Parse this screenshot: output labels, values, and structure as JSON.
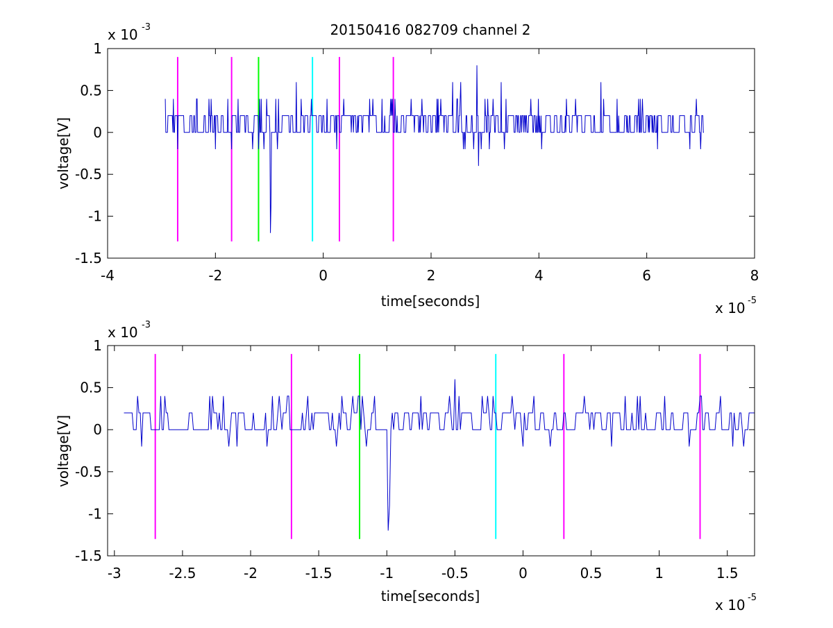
{
  "figure_title": "20150416 082709 channel 2",
  "chart_data": [
    {
      "type": "line",
      "title": "20150416 082709 channel 2",
      "xlabel": "time[seconds]",
      "ylabel": "voltage[V]",
      "x_multiplier": "x 10",
      "x_exponent": "-5",
      "y_multiplier": "x 10",
      "y_exponent": "-3",
      "xlim": [
        -4,
        8
      ],
      "ylim": [
        -1.5,
        1
      ],
      "x_ticks": [
        -4,
        -2,
        0,
        2,
        4,
        6,
        8
      ],
      "x_tick_labels": [
        "-4",
        "-2",
        "0",
        "2",
        "4",
        "6",
        "8"
      ],
      "y_ticks": [
        -1.5,
        -1,
        -0.5,
        0,
        0.5,
        1
      ],
      "y_tick_labels": [
        "-1.5",
        "-1",
        "-0.5",
        "0",
        "0.5",
        "1"
      ],
      "grid": false,
      "series": [
        {
          "style": "line",
          "color": "#0000cc",
          "x_start": -2.93,
          "x_end": 7.0,
          "n_points": 1000,
          "dx": 0.01,
          "baseline_levels": [
            0,
            0.2
          ],
          "typical_peaks": [
            0.4,
            -0.2
          ],
          "events": [
            {
              "x": -2.7,
              "y": -0.2
            },
            {
              "x": -2.0,
              "y": -0.2
            },
            {
              "x": -1.7,
              "y": -0.2
            },
            {
              "x": -1.58,
              "y": 0.4
            },
            {
              "x": -1.2,
              "y": -0.2
            },
            {
              "x": -1.18,
              "y": 0.4
            },
            {
              "x": -0.98,
              "y": -1.2
            },
            {
              "x": -0.97,
              "y": -0.9
            },
            {
              "x": -0.5,
              "y": 0.6
            },
            {
              "x": -0.22,
              "y": 0.4
            },
            {
              "x": 0.25,
              "y": -0.2
            },
            {
              "x": 2.4,
              "y": 0.6
            },
            {
              "x": 2.55,
              "y": 0.6
            },
            {
              "x": 2.6,
              "y": -0.2
            },
            {
              "x": 2.85,
              "y": 0.8
            },
            {
              "x": 2.88,
              "y": -0.4
            },
            {
              "x": 3.3,
              "y": 0.6
            },
            {
              "x": 4.05,
              "y": -0.2
            },
            {
              "x": 5.15,
              "y": 0.6
            },
            {
              "x": 6.2,
              "y": -0.2
            },
            {
              "x": 7.0,
              "y": 0.6
            },
            {
              "x": 7.0,
              "y": -0.2
            }
          ]
        }
      ],
      "markers": [
        {
          "x": -2.7,
          "color": "#ff00ff",
          "y_range": [
            -1.3,
            0.9
          ]
        },
        {
          "x": -1.7,
          "color": "#ff00ff",
          "y_range": [
            -1.3,
            0.9
          ]
        },
        {
          "x": -1.2,
          "color": "#00ff00",
          "y_range": [
            -1.3,
            0.9
          ]
        },
        {
          "x": -0.2,
          "color": "#00ffff",
          "y_range": [
            -1.3,
            0.9
          ]
        },
        {
          "x": 0.3,
          "color": "#ff00ff",
          "y_range": [
            -1.3,
            0.9
          ]
        },
        {
          "x": 1.3,
          "color": "#ff00ff",
          "y_range": [
            -1.3,
            0.9
          ]
        }
      ]
    },
    {
      "type": "line",
      "title": "",
      "xlabel": "time[seconds]",
      "ylabel": "voltage[V]",
      "x_multiplier": "x 10",
      "x_exponent": "-5",
      "y_multiplier": "x 10",
      "y_exponent": "-3",
      "xlim": [
        -3.05,
        1.7
      ],
      "ylim": [
        -1.5,
        1
      ],
      "x_ticks": [
        -3,
        -2.5,
        -2,
        -1.5,
        -1,
        -0.5,
        0,
        0.5,
        1,
        1.5
      ],
      "x_tick_labels": [
        "-3",
        "-2.5",
        "-2",
        "-1.5",
        "-1",
        "-0.5",
        "0",
        "0.5",
        "1",
        "1.5"
      ],
      "y_ticks": [
        -1.5,
        -1,
        -0.5,
        0,
        0.5,
        1
      ],
      "y_tick_labels": [
        "-1.5",
        "-1",
        "-0.5",
        "0",
        "0.5",
        "1"
      ],
      "grid": false,
      "series": [
        {
          "style": "line",
          "color": "#0000cc",
          "x_start": -2.93,
          "x_end": 1.7,
          "n_points": 464,
          "dx": 0.01,
          "baseline_levels": [
            0,
            0.2
          ],
          "typical_peaks": [
            0.4,
            -0.2
          ],
          "events": [
            {
              "x": -2.83,
              "y": 0.4
            },
            {
              "x": -2.8,
              "y": -0.2
            },
            {
              "x": -2.66,
              "y": 0.4
            },
            {
              "x": -2.28,
              "y": 0.4
            },
            {
              "x": -2.2,
              "y": 0.4
            },
            {
              "x": -2.16,
              "y": -0.2
            },
            {
              "x": -1.88,
              "y": -0.2
            },
            {
              "x": -1.84,
              "y": 0.4
            },
            {
              "x": -1.72,
              "y": 0.4
            },
            {
              "x": -1.58,
              "y": 0.4
            },
            {
              "x": -1.37,
              "y": -0.2
            },
            {
              "x": -1.18,
              "y": 0.4
            },
            {
              "x": -1.15,
              "y": -0.2
            },
            {
              "x": -1.09,
              "y": 0.4
            },
            {
              "x": -0.99,
              "y": -1.2
            },
            {
              "x": -0.98,
              "y": -0.9
            },
            {
              "x": -0.97,
              "y": 0.0
            },
            {
              "x": -0.75,
              "y": 0.4
            },
            {
              "x": -0.5,
              "y": 0.6
            },
            {
              "x": -0.47,
              "y": 0.4
            },
            {
              "x": -0.22,
              "y": 0.4
            },
            {
              "x": -0.2,
              "y": 0.2
            },
            {
              "x": 0.08,
              "y": 0.4
            },
            {
              "x": 0.2,
              "y": -0.2
            },
            {
              "x": 0.45,
              "y": 0.4
            },
            {
              "x": 0.65,
              "y": -0.2
            },
            {
              "x": 1.04,
              "y": 0.4
            },
            {
              "x": 1.22,
              "y": -0.2
            },
            {
              "x": 1.45,
              "y": 0.4
            },
            {
              "x": 1.54,
              "y": -0.2
            }
          ]
        }
      ],
      "markers": [
        {
          "x": -2.7,
          "color": "#ff00ff",
          "y_range": [
            -1.3,
            0.9
          ]
        },
        {
          "x": -1.7,
          "color": "#ff00ff",
          "y_range": [
            -1.3,
            0.9
          ]
        },
        {
          "x": -1.2,
          "color": "#00ff00",
          "y_range": [
            -1.3,
            0.9
          ]
        },
        {
          "x": -0.2,
          "color": "#00ffff",
          "y_range": [
            -1.3,
            0.9
          ]
        },
        {
          "x": 0.3,
          "color": "#ff00ff",
          "y_range": [
            -1.3,
            0.9
          ]
        },
        {
          "x": 1.3,
          "color": "#ff00ff",
          "y_range": [
            -1.3,
            0.9
          ]
        }
      ]
    }
  ]
}
